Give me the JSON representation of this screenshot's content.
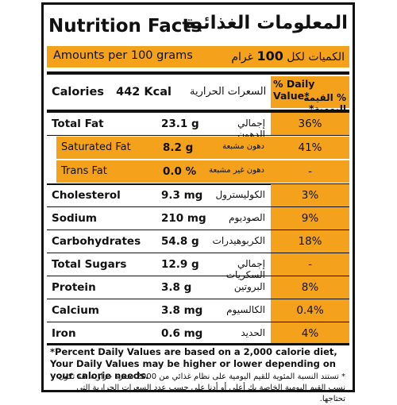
{
  "header": {
    "title_en": "Nutrition Facts",
    "title_ar": "المعلومات الغذائية"
  },
  "amounts": {
    "en": "Amounts per 100 grams",
    "ar_prefix": "الكميات لكل",
    "ar_qty": "100",
    "ar_unit": "غرام"
  },
  "calories": {
    "label_en": "Calories",
    "value": "442 Kcal",
    "label_ar": "السعرات الحرارية"
  },
  "daily_value": {
    "en": "% Daily Value*",
    "ar": "% القيمة اليومية*"
  },
  "rows": {
    "total_fat": {
      "en": "Total Fat",
      "value": "23.1 g",
      "ar": "إجمالي الدهون",
      "pct": "36%"
    },
    "saturated_fat": {
      "en": "Saturated Fat",
      "value": "8.2 g",
      "ar": "دهون مشبعة",
      "pct": "41%"
    },
    "trans_fat": {
      "en": "Trans Fat",
      "value": "0.0 %",
      "ar": "دهون غير مشبعة",
      "pct": "-"
    },
    "cholesterol": {
      "en": "Cholesterol",
      "value": "9.3 mg",
      "ar": "الكوليسترول",
      "pct": "3%"
    },
    "sodium": {
      "en": "Sodium",
      "value": "210 mg",
      "ar": "الصوديوم",
      "pct": "9%"
    },
    "carbohydrates": {
      "en": "Carbohydrates",
      "value": "54.8 g",
      "ar": "الكربوهيدرات",
      "pct": "18%"
    },
    "total_sugars": {
      "en": "Total Sugars",
      "value": "12.9 g",
      "ar": "إجمالي السكريات",
      "pct": "-"
    },
    "protein": {
      "en": "Protein",
      "value": "3.8 g",
      "ar": "البروتين",
      "pct": "8%"
    },
    "calcium": {
      "en": "Calcium",
      "value": "3.8 mg",
      "ar": "الكالسيوم",
      "pct": "0.4%"
    },
    "iron": {
      "en": "Iron",
      "value": "0.6 mg",
      "ar": "الحديد",
      "pct": "4%"
    }
  },
  "footnote": {
    "en": "*Percent Daily Values are based on a 2,000 calorie diet, Your Daily Values may be higher or lower depending on your calorie needs.",
    "ar": "* تستند النسبة المئوية للقيم اليومية على نظام غذائي من 2000 سعرة حرارية، قد تكون نسب القيم اليومية الخاصة بك أعلى أو أدنا على حسب عدد السعرات الحرارية التي تحتاجها."
  },
  "colors": {
    "accent": "#f4a21b",
    "border": "#111111"
  }
}
